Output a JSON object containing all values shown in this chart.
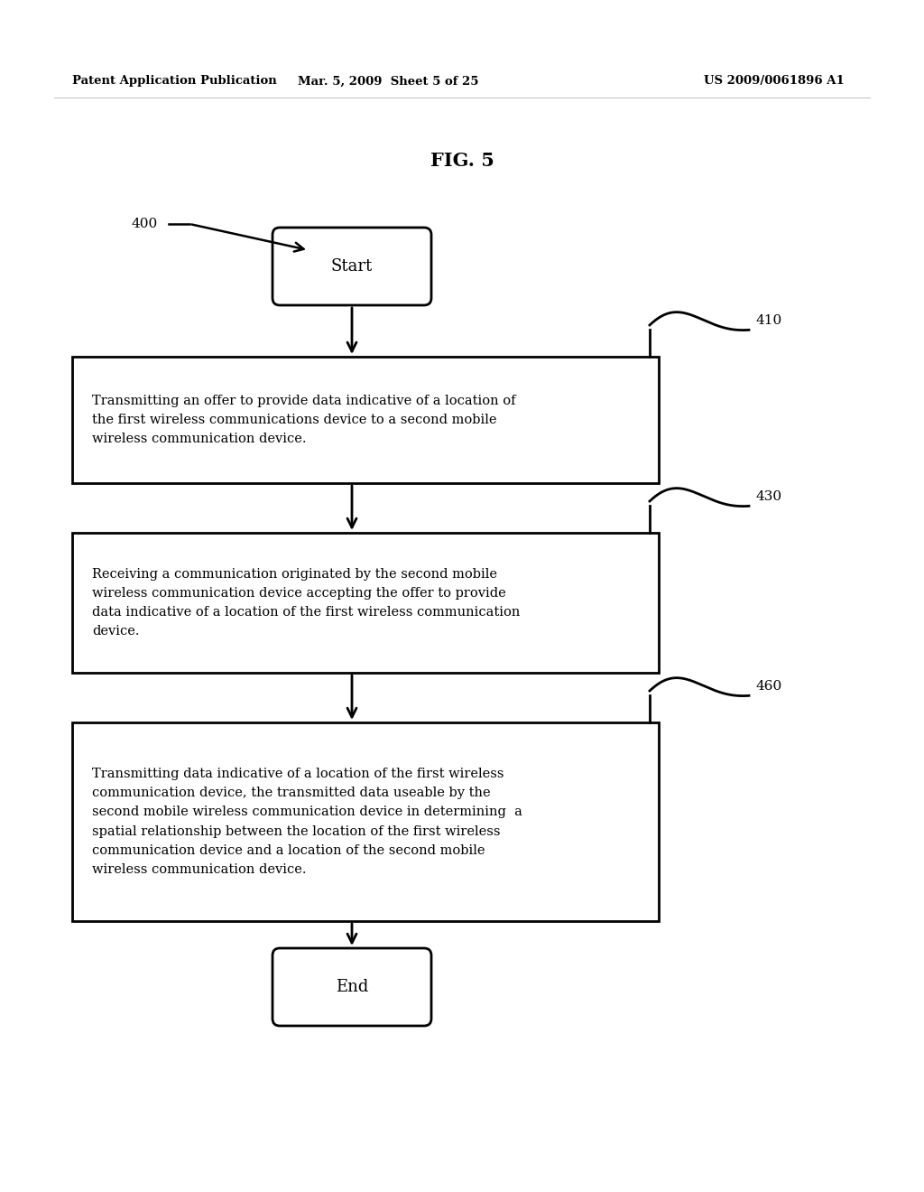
{
  "fig_title": "FIG. 5",
  "header_left": "Patent Application Publication",
  "header_mid": "Mar. 5, 2009  Sheet 5 of 25",
  "header_right": "US 2009/0061896 A1",
  "label_400": "400",
  "start_label": "Start",
  "end_label": "End",
  "box1_label": "410",
  "box2_label": "430",
  "box3_label": "460",
  "box1_text": "Transmitting an offer to provide data indicative of a location of\nthe first wireless communications device to a second mobile\nwireless communication device.",
  "box2_text": "Receiving a communication originated by the second mobile\nwireless communication device accepting the offer to provide\ndata indicative of a location of the first wireless communication\ndevice.",
  "box3_text": "Transmitting data indicative of a location of the first wireless\ncommunication device, the transmitted data useable by the\nsecond mobile wireless communication device in determining  a\nspatial relationship between the location of the first wireless\ncommunication device and a location of the second mobile\nwireless communication device.",
  "bg_color": "#ffffff",
  "text_color": "#000000",
  "box_edge_color": "#000000",
  "arrow_color": "#000000"
}
